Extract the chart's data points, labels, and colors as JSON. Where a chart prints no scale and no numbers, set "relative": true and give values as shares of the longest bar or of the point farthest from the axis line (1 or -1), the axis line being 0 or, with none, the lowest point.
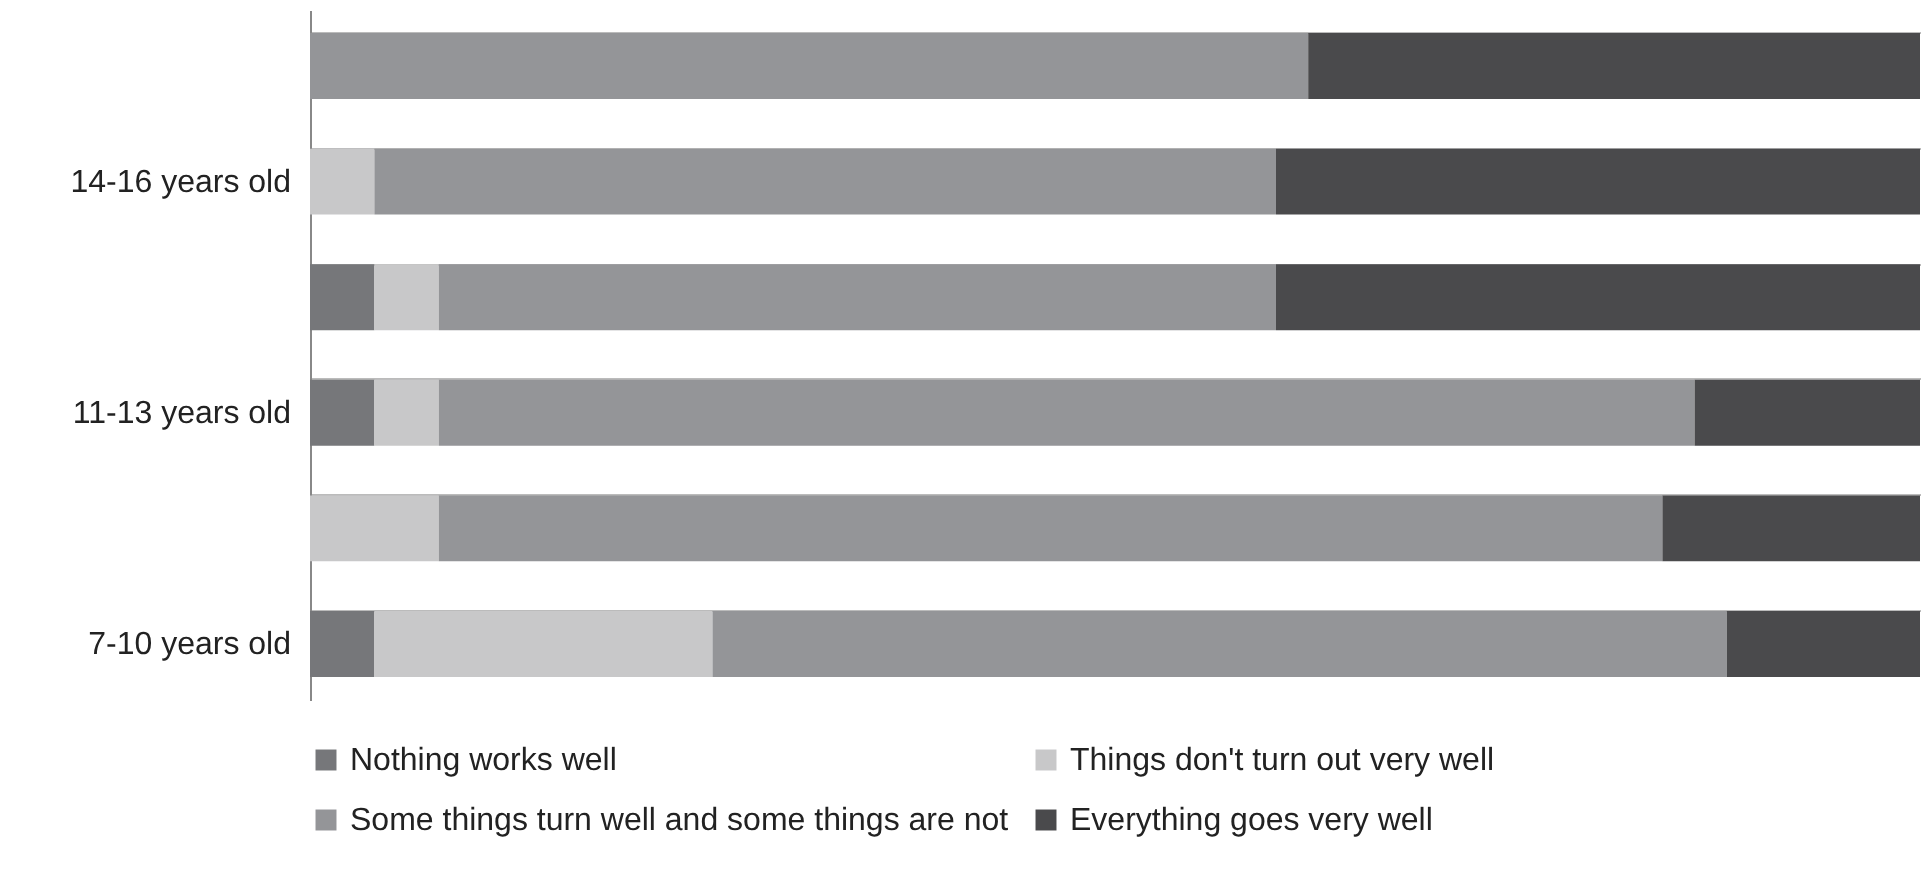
{
  "chart_data": {
    "type": "bar",
    "orientation": "horizontal",
    "stacked": true,
    "relative": true,
    "grid": "y",
    "legend": "bottom",
    "categories": [
      null,
      "14-16 years old",
      null,
      "11-13 years old",
      null,
      "7-10 years old"
    ],
    "series": [
      {
        "name": "Nothing works well",
        "color": "#76777a",
        "values": [
          0,
          0,
          0.04,
          0.04,
          0,
          0.04
        ]
      },
      {
        "name": "Things don't turn out very well",
        "color": "#c8c8c9",
        "values": [
          0,
          0.04,
          0.04,
          0.04,
          0.08,
          0.21
        ]
      },
      {
        "name": "Some things turn well and some things are not",
        "color": "#949598",
        "values": [
          0.62,
          0.56,
          0.52,
          0.78,
          0.76,
          0.63
        ]
      },
      {
        "name": "Everything goes very well",
        "color": "#4a4a4c",
        "values": [
          0.38,
          0.4,
          0.4,
          0.14,
          0.16,
          0.12
        ]
      }
    ]
  }
}
